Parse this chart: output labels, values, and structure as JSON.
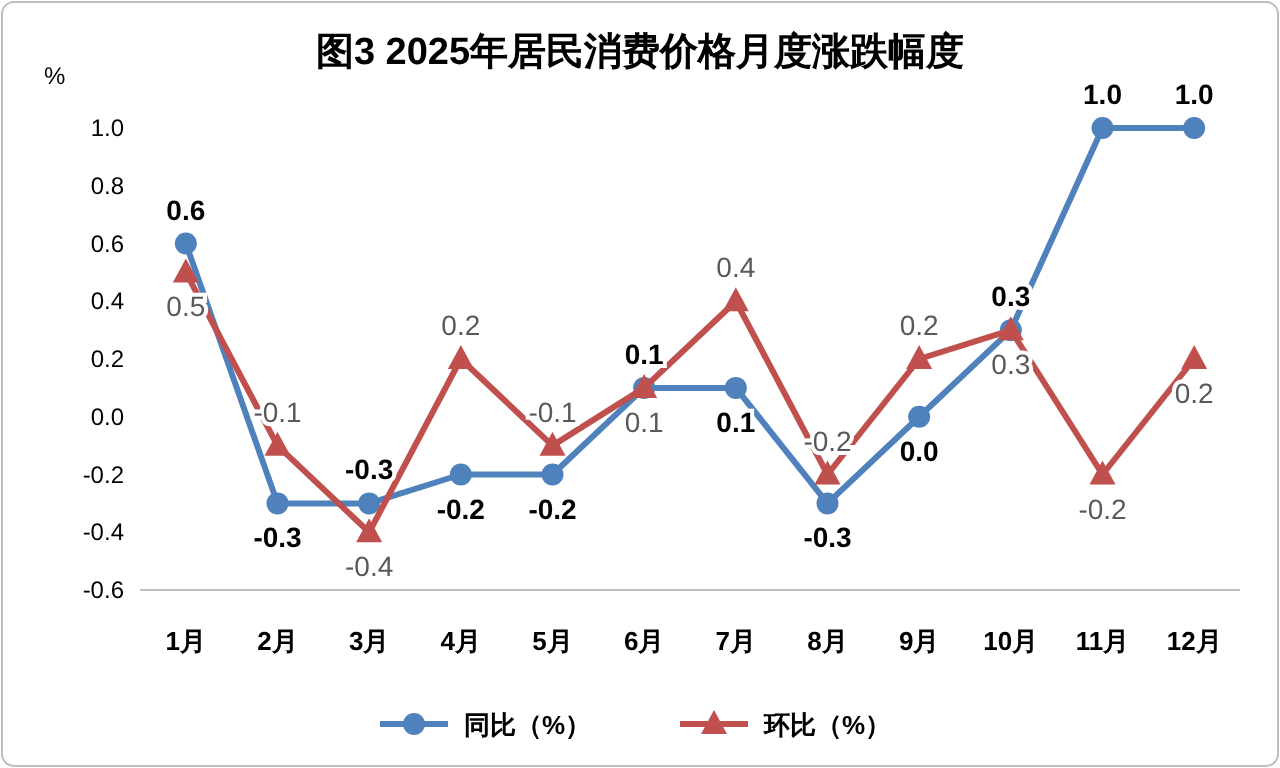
{
  "chart_data": {
    "type": "line",
    "title": "图3 2025年居民消费价格月度涨跌幅度",
    "ylabel": "%",
    "categories": [
      "1月",
      "2月",
      "3月",
      "4月",
      "5月",
      "6月",
      "7月",
      "8月",
      "9月",
      "10月",
      "11月",
      "12月"
    ],
    "series": [
      {
        "name": "同比（%）",
        "color": "#4f81bd",
        "marker": "circle",
        "values": [
          0.6,
          -0.3,
          -0.3,
          -0.2,
          -0.2,
          0.1,
          0.1,
          -0.3,
          0.0,
          0.3,
          1.0,
          1.0
        ],
        "value_labels": [
          "0.6",
          "-0.3",
          "-0.3",
          "-0.2",
          "-0.2",
          "0.1",
          "0.1",
          "-0.3",
          "0.0",
          "0.3",
          "1.0",
          "1.0"
        ]
      },
      {
        "name": "环比（%）",
        "color": "#c0504d",
        "marker": "triangle",
        "values": [
          0.5,
          -0.1,
          -0.4,
          0.2,
          -0.1,
          0.1,
          0.4,
          -0.2,
          0.2,
          0.3,
          -0.2,
          0.2
        ],
        "value_labels": [
          "0.5",
          "-0.1",
          "-0.4",
          "0.2",
          "-0.1",
          "0.1",
          "0.4",
          "-0.2",
          "0.2",
          "0.3",
          "-0.2",
          "0.2"
        ]
      }
    ],
    "ylim": [
      -0.6,
      1.0
    ],
    "yticks": [
      {
        "value": -0.6,
        "label": "-0.6"
      },
      {
        "value": -0.4,
        "label": "-0.4"
      },
      {
        "value": -0.2,
        "label": "-0.2"
      },
      {
        "value": 0,
        "label": "0.0"
      },
      {
        "value": 0.2,
        "label": "0.2"
      },
      {
        "value": 0.4,
        "label": "0.4"
      },
      {
        "value": 0.6,
        "label": "0.6"
      },
      {
        "value": 0.8,
        "label": "0.8"
      },
      {
        "value": 1.0,
        "label": "1.0"
      }
    ],
    "legend": "bottom",
    "line_style": "solid"
  }
}
